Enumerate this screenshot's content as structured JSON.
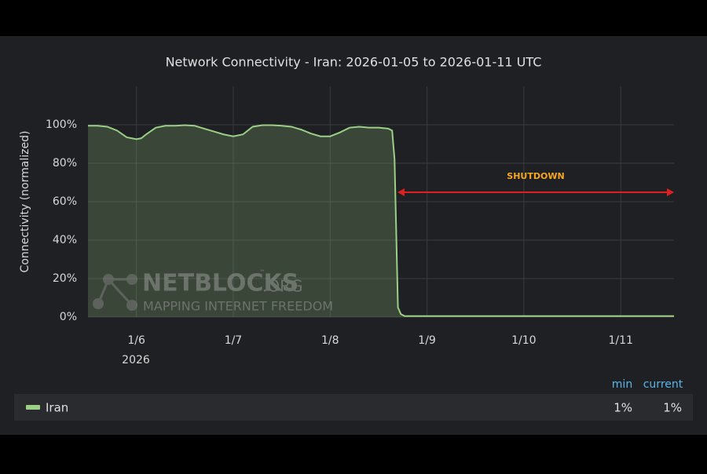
{
  "chart_data": {
    "type": "area",
    "title": "Network Connectivity - Iran: 2026-01-05 to 2026-01-11 UTC",
    "y_label": "Connectivity (normalized)",
    "x_year_label": "2026",
    "xlim": [
      5.5,
      11.55
    ],
    "xticks": [
      {
        "value": 6,
        "label": "1/6"
      },
      {
        "value": 7,
        "label": "1/7"
      },
      {
        "value": 8,
        "label": "1/8"
      },
      {
        "value": 9,
        "label": "1/9"
      },
      {
        "value": 10,
        "label": "1/10"
      },
      {
        "value": 11,
        "label": "1/11"
      }
    ],
    "ylim": [
      0,
      120
    ],
    "yticks": [
      {
        "value": 0,
        "label": "0%"
      },
      {
        "value": 20,
        "label": "20%"
      },
      {
        "value": 40,
        "label": "40%"
      },
      {
        "value": 60,
        "label": "60%"
      },
      {
        "value": 80,
        "label": "80%"
      },
      {
        "value": 100,
        "label": "100%"
      }
    ],
    "grid": true,
    "x": [
      5.5,
      5.6,
      5.7,
      5.8,
      5.9,
      6.0,
      6.05,
      6.1,
      6.2,
      6.3,
      6.4,
      6.5,
      6.6,
      6.7,
      6.8,
      6.9,
      7.0,
      7.1,
      7.2,
      7.3,
      7.4,
      7.5,
      7.6,
      7.7,
      7.8,
      7.9,
      8.0,
      8.1,
      8.2,
      8.3,
      8.4,
      8.5,
      8.6,
      8.64,
      8.665,
      8.7,
      8.73,
      8.77,
      9.0,
      9.5,
      10.0,
      10.5,
      11.0,
      11.55
    ],
    "series": [
      {
        "name": "Iran",
        "color": "#9bcf86",
        "values": [
          99.5,
          99.5,
          99,
          97,
          93.5,
          92.5,
          93,
          95,
          98.5,
          99.5,
          99.5,
          99.8,
          99.5,
          98,
          96.5,
          95,
          94,
          95,
          99,
          99.8,
          99.8,
          99.5,
          99,
          97.5,
          95.5,
          94,
          94,
          96,
          98.5,
          99,
          98.5,
          98.5,
          98,
          97,
          82,
          5,
          1.5,
          0.5,
          0.5,
          0.5,
          0.5,
          0.5,
          0.5,
          0.5
        ]
      }
    ],
    "annotation": "SHUTDOWN",
    "watermark": {
      "title": "NETBLOCKS",
      "suffix": ".ORG",
      "tm": "™",
      "tagline": "MAPPING INTERNET FREEDOM"
    },
    "legend_table": {
      "columns": [
        "min",
        "current"
      ],
      "rows": [
        [
          "1%",
          "1%"
        ]
      ]
    }
  }
}
